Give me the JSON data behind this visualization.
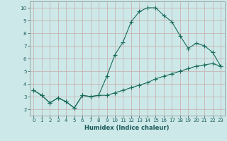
{
  "xlabel": "Humidex (Indice chaleur)",
  "background_color": "#cde8e8",
  "grid_color": "#c8b4b4",
  "line_color": "#1a6b5a",
  "xlim": [
    -0.5,
    23.5
  ],
  "ylim": [
    1.5,
    10.5
  ],
  "xticks": [
    0,
    1,
    2,
    3,
    4,
    5,
    6,
    7,
    8,
    9,
    10,
    11,
    12,
    13,
    14,
    15,
    16,
    17,
    18,
    19,
    20,
    21,
    22,
    23
  ],
  "yticks": [
    2,
    3,
    4,
    5,
    6,
    7,
    8,
    9,
    10
  ],
  "line1_x": [
    0,
    1,
    2,
    3,
    4,
    5,
    6,
    7,
    8,
    9,
    10,
    11,
    12,
    13,
    14,
    15,
    16,
    17,
    18,
    19,
    20,
    21,
    22,
    23
  ],
  "line1_y": [
    3.5,
    3.1,
    2.5,
    2.9,
    2.6,
    2.1,
    3.1,
    3.0,
    3.1,
    4.6,
    6.3,
    7.3,
    8.9,
    9.7,
    10.0,
    10.0,
    9.4,
    8.9,
    7.8,
    6.8,
    7.2,
    7.0,
    6.5,
    5.4
  ],
  "line2_x": [
    0,
    1,
    2,
    3,
    4,
    5,
    6,
    7,
    8,
    9,
    10,
    11,
    12,
    13,
    14,
    15,
    16,
    17,
    18,
    19,
    20,
    21,
    22,
    23
  ],
  "line2_y": [
    3.5,
    3.1,
    2.5,
    2.9,
    2.6,
    2.1,
    3.1,
    3.0,
    3.1,
    3.1,
    3.3,
    3.5,
    3.7,
    3.9,
    4.1,
    4.4,
    4.6,
    4.8,
    5.0,
    5.2,
    5.4,
    5.5,
    5.6,
    5.4
  ],
  "marker_size": 2.0,
  "line_width": 0.8,
  "tick_fontsize": 5.0,
  "xlabel_fontsize": 6.0
}
